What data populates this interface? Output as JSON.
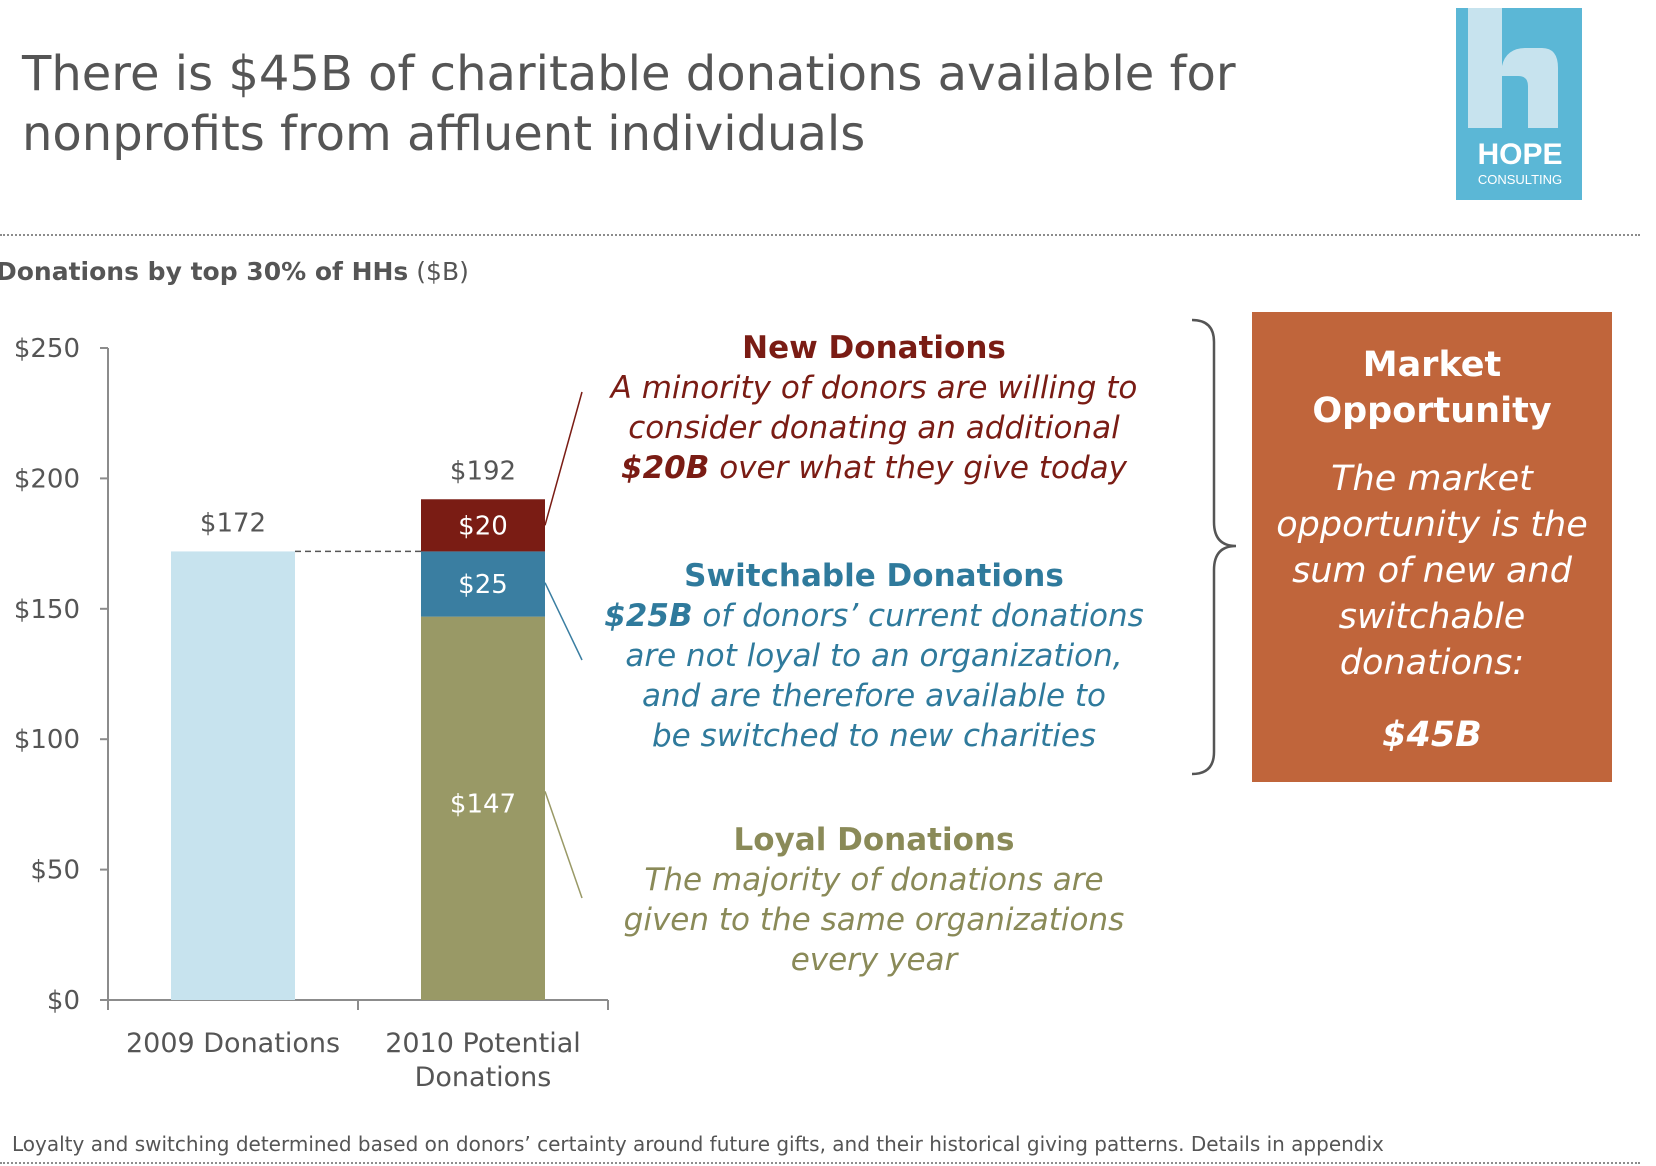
{
  "slide": {
    "title_line1": "There is $45B of charitable donations available for",
    "title_line2": "nonprofits from affluent individuals",
    "footnote": "Loyalty and switching determined based on donors’ certainty around future gifts, and their historical giving patterns. Details in appendix"
  },
  "logo": {
    "name": "HOPE",
    "sub": "CONSULTING",
    "color": "#5bb7d6"
  },
  "chart_title": {
    "bold": "Donations by top 30% of HHs",
    "unit": "($B)"
  },
  "chart_data": {
    "type": "bar",
    "stacked": true,
    "title": "Donations by top 30% of HHs ($B)",
    "categories": [
      "2009 Donations",
      "2010 Potential Donations"
    ],
    "series": [
      {
        "name": "2009 Donations",
        "values": [
          172,
          0
        ],
        "color": "#c7e3ee"
      },
      {
        "name": "Loyal Donations",
        "values": [
          0,
          147
        ],
        "color": "#999966"
      },
      {
        "name": "Switchable Donations",
        "values": [
          0,
          25
        ],
        "color": "#3a7ea1"
      },
      {
        "name": "New Donations",
        "values": [
          0,
          20
        ],
        "color": "#7a1c14"
      }
    ],
    "totals": [
      "$172",
      "$192"
    ],
    "segment_labels": [
      "$147",
      "$25",
      "$20"
    ],
    "ylim": [
      0,
      250
    ],
    "yticks": [
      0,
      50,
      100,
      150,
      200,
      250
    ],
    "ytick_labels": [
      "$0",
      "$50",
      "$100",
      "$150",
      "$200",
      "$250"
    ],
    "xlabel": "",
    "ylabel": "$B"
  },
  "annotations": {
    "new": {
      "heading": "New Donations",
      "line1": "A minority of donors are willing to",
      "line2": "consider donating an additional",
      "em": "$20B",
      "rest": " over what they give today",
      "color": "#7a1c14"
    },
    "switchable": {
      "heading": "Switchable Donations",
      "em": "$25B",
      "rest1": " of donors’ current donations",
      "line2": "are not loyal to an organization,",
      "line3": "and are therefore available to",
      "line4": "be switched to new charities",
      "color": "#2f7a9c"
    },
    "loyal": {
      "heading": "Loyal Donations",
      "line1": "The majority of donations are",
      "line2": "given to the same organizations",
      "line3": "every year",
      "color": "#8a8a58"
    }
  },
  "opportunity": {
    "heading1": "Market",
    "heading2": "Opportunity",
    "line1": "The market",
    "line2": "opportunity is the",
    "line3": "sum of new and",
    "line4": "switchable",
    "line5": "donations:",
    "value": "$45B",
    "color": "#c0653b"
  }
}
